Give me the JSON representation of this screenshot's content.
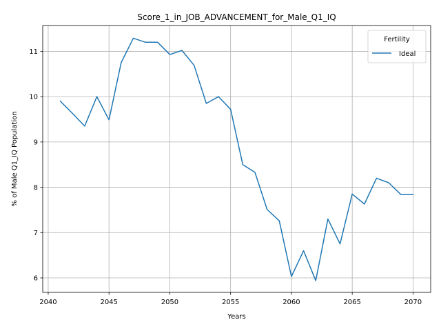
{
  "chart_data": {
    "type": "line",
    "title": "Score_1_in_JOB_ADVANCEMENT_for_Male_Q1_IQ",
    "xlabel": "Years",
    "ylabel": "% of Male Q1_IQ Population",
    "xlim": [
      2039.55,
      2071.45
    ],
    "ylim": [
      5.68,
      11.57
    ],
    "xticks": [
      2040,
      2045,
      2050,
      2055,
      2060,
      2065,
      2070
    ],
    "yticks": [
      6,
      7,
      8,
      9,
      10,
      11
    ],
    "grid": true,
    "legend": {
      "title": "Fertility",
      "placement": "top-right"
    },
    "series": [
      {
        "name": "Ideal",
        "color": "#1f77b4",
        "x": [
          2041,
          2042,
          2043,
          2044,
          2045,
          2046,
          2047,
          2048,
          2049,
          2050,
          2051,
          2052,
          2053,
          2054,
          2055,
          2056,
          2057,
          2058,
          2059,
          2060,
          2061,
          2062,
          2063,
          2064,
          2065,
          2066,
          2067,
          2068,
          2069,
          2070
        ],
        "y": [
          9.9,
          9.63,
          9.35,
          10.0,
          9.49,
          10.75,
          11.29,
          11.2,
          11.2,
          10.93,
          11.02,
          10.69,
          9.85,
          10.0,
          9.72,
          8.5,
          8.33,
          7.51,
          7.26,
          6.03,
          6.6,
          5.94,
          7.3,
          6.75,
          7.85,
          7.63,
          8.2,
          8.1,
          7.84,
          7.84
        ]
      }
    ]
  }
}
